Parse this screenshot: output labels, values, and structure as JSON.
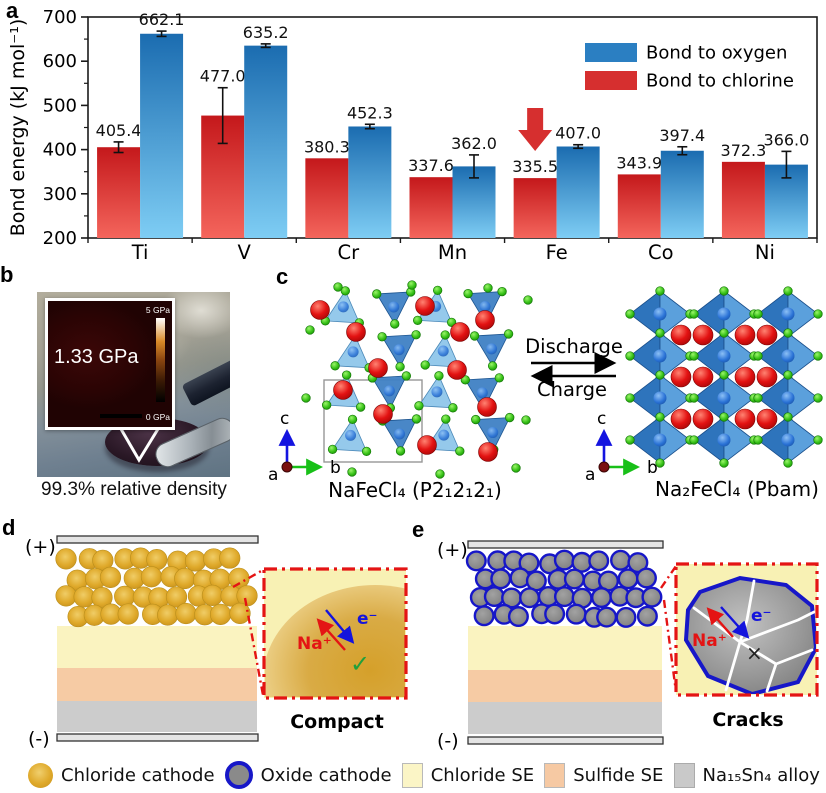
{
  "panel_labels": {
    "a": "a",
    "b": "b",
    "c": "c",
    "d": "d",
    "e": "e"
  },
  "chart_data": {
    "type": "bar",
    "categories": [
      "Ti",
      "V",
      "Cr",
      "Mn",
      "Fe",
      "Co",
      "Ni"
    ],
    "series": [
      {
        "name": "Bond to chlorine",
        "color": "#d62f2f",
        "color_top": "#c4181b",
        "color_bottom": "#f4655c",
        "values": [
          405.4,
          477.0,
          380.3,
          337.6,
          335.5,
          343.9,
          372.3
        ],
        "errors": [
          12,
          63,
          0,
          0,
          0,
          0,
          0
        ]
      },
      {
        "name": "Bond to oxygen",
        "color": "#2b7fc2",
        "color_top": "#1b6cb0",
        "color_bottom": "#7ecdf4",
        "values": [
          662.1,
          635.2,
          452.3,
          362.0,
          407.0,
          397.4,
          366.0
        ],
        "errors": [
          6,
          4,
          5,
          26,
          4,
          9,
          30
        ]
      }
    ],
    "legend": [
      {
        "label": "Bond to oxygen",
        "color": "#2b7fc2"
      },
      {
        "label": "Bond to chlorine",
        "color": "#d62f2f"
      }
    ],
    "ylabel": "Bond energy (kJ mol⁻¹)",
    "ylim": [
      200,
      700
    ],
    "yticks": [
      200,
      300,
      400,
      500,
      600,
      700
    ],
    "grid": false,
    "legend_position": "top-right",
    "annotation": {
      "type": "down-arrow",
      "target": "Fe",
      "color": "#d62f2f"
    }
  },
  "panel_b": {
    "inset_pressure": "1.33 GPa",
    "colorbar_top": "5 GPa",
    "colorbar_bottom": "0 GPa",
    "caption": "99.3% relative density"
  },
  "panel_c": {
    "left_formula": "NaFeCl₄ (P2₁2₁2₁)",
    "right_formula": "Na₂FeCl₄ (Pbam)",
    "discharge_label": "Discharge",
    "charge_label": "Charge",
    "axes": {
      "a": "a",
      "b": "b",
      "c": "c"
    }
  },
  "panel_d": {
    "positive": "(+)",
    "negative": "(-)",
    "ion_label": "Na⁺",
    "electron_label": "e⁻",
    "check": "✓",
    "result_label": "Compact"
  },
  "panel_e": {
    "positive": "(+)",
    "negative": "(-)",
    "ion_label": "Na⁺",
    "electron_label": "e⁻",
    "cross": "×",
    "result_label": "Cracks"
  },
  "bottom_legend": {
    "items": [
      {
        "label": "Chloride cathode",
        "swatch": "gold-circle",
        "color": "#dfa92a"
      },
      {
        "label": "Oxide cathode",
        "swatch": "blue-ring-circle",
        "color": "#8a8a8a",
        "ring_color": "#1717c8"
      },
      {
        "label": "Chloride SE",
        "swatch": "square",
        "color": "#fbf5c6"
      },
      {
        "label": "Sulfide SE",
        "swatch": "square",
        "color": "#f6c9a3"
      },
      {
        "label": "Na₁₅Sn₄ alloy",
        "swatch": "square",
        "color": "#c9c9c9"
      }
    ]
  },
  "colors": {
    "bar_blue_top": "#1b6cb0",
    "bar_blue_bottom": "#7ecdf4",
    "bar_red_top": "#c4181b",
    "bar_red_bottom": "#f4655c",
    "arrow_red": "#d62f2f",
    "inset_border_red": "#e41414",
    "chloride_se": "#faf3c0",
    "sulfide_se": "#f6cba4",
    "alloy_gray": "#cccccc",
    "oxide_ring_blue": "#1717c8",
    "na_red": "#e41414",
    "electron_blue": "#1414dd",
    "check_green": "#1fa03c"
  }
}
